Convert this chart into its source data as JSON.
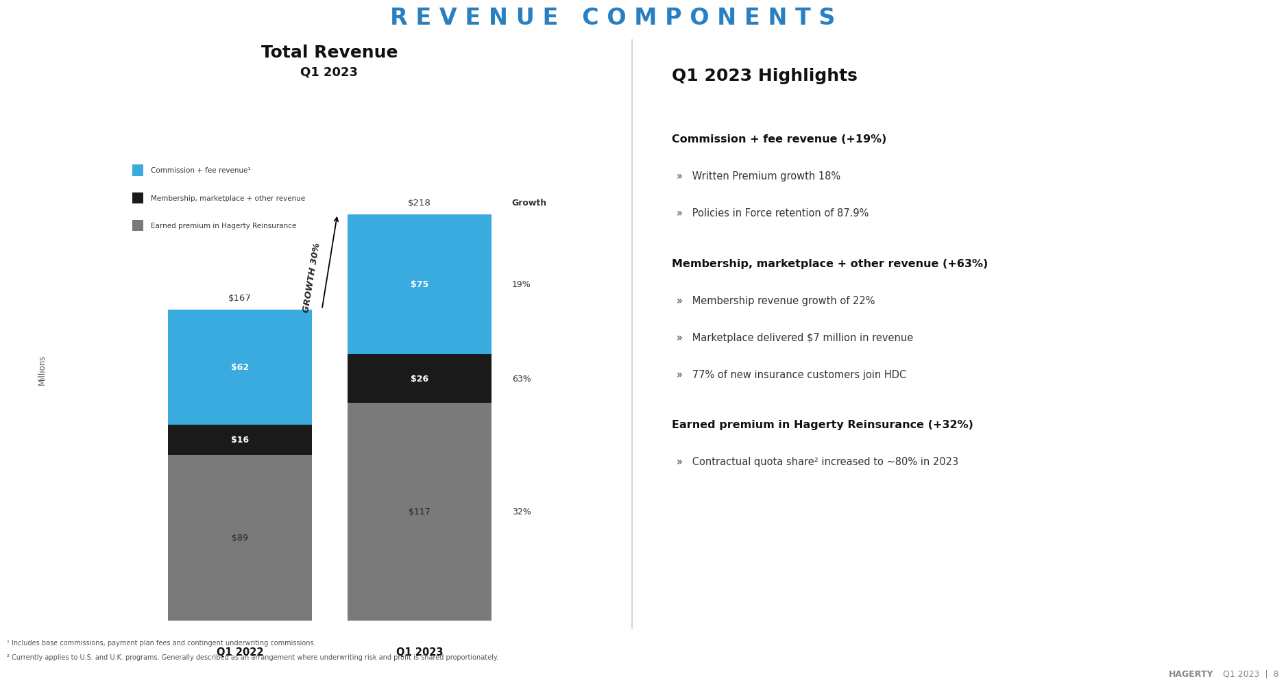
{
  "title": "REVENUE COMPONENTS",
  "left_title": "Total Revenue",
  "left_subtitle": "Q1 2023",
  "ylabel": "Millions",
  "categories": [
    "Q1 2022",
    "Q1 2023"
  ],
  "commission_values": [
    62,
    75
  ],
  "membership_values": [
    16,
    26
  ],
  "reinsurance_values": [
    89,
    117
  ],
  "total_values": [
    167,
    218
  ],
  "commission_color": "#3aabde",
  "membership_color": "#1a1a1a",
  "reinsurance_color": "#7a7a7a",
  "growth_labels": [
    "19%",
    "63%",
    "32%"
  ],
  "growth_header": "Growth",
  "growth_annotation": "GROWTH 30%",
  "legend_labels": [
    "Commission + fee revenue¹",
    "Membership, marketplace + other revenue",
    "Earned premium in Hagerty Reinsurance"
  ],
  "highlights_title": "Q1 2023 Highlights",
  "section1_title": "Commission + fee revenue (+19%)",
  "section1_bullets": [
    "Written Premium growth 18%",
    "Policies in Force retention of 87.9%"
  ],
  "section2_title": "Membership, marketplace + other revenue (+63%)",
  "section2_bullets": [
    "Membership revenue growth of 22%",
    "Marketplace delivered $7 million in revenue",
    "77% of new insurance customers join HDC"
  ],
  "section3_title": "Earned premium in Hagerty Reinsurance (+32%)",
  "section3_bullets": [
    "Contractual quota share² increased to ~80% in 2023"
  ],
  "footnote1": "¹ Includes base commissions, payment plan fees and contingent underwriting commissions.",
  "footnote2": "² Currently applies to U.S. and U.K. programs. Generally described as an arrangement where underwriting risk and profit is shared proportionately.",
  "footer_hagerty": "HAGERTY",
  "footer_right": "Q1 2023  |  8",
  "bg_color": "#ebebeb",
  "page_bg": "#ffffff"
}
